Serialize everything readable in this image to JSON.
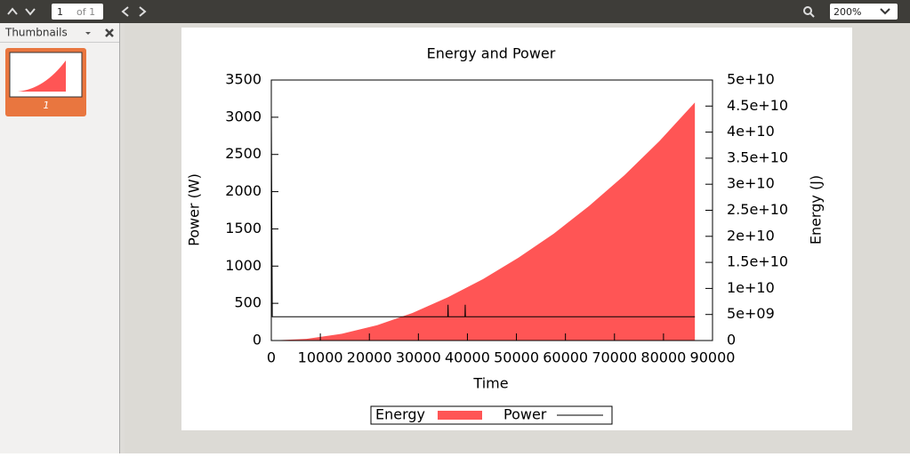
{
  "toolbar": {
    "page": "1",
    "page_count": "of 1",
    "zoom": "200%"
  },
  "sidebar": {
    "title": "Thumbnails",
    "thumbnail_label": "1"
  },
  "chart_data": {
    "type": "area",
    "title": "Energy and Power",
    "x_label": "Time",
    "y_label": "Power (W)",
    "y2_label": "Energy (J)",
    "xlim": [
      0,
      90000
    ],
    "xticks": [
      0,
      10000,
      20000,
      30000,
      40000,
      50000,
      60000,
      70000,
      80000,
      90000
    ],
    "ylim": [
      0,
      3500
    ],
    "yticks": [
      0,
      500,
      1000,
      1500,
      2000,
      2500,
      3000,
      3500
    ],
    "y2lim": [
      0,
      50000000000
    ],
    "y2ticks": [
      0,
      {
        "value": 5000000000,
        "label": "5e+09"
      },
      {
        "value": 10000000000,
        "label": "1e+10"
      },
      {
        "value": 15000000000,
        "label": "1.5e+10"
      },
      {
        "value": 20000000000,
        "label": "2e+10"
      },
      {
        "value": 25000000000,
        "label": "2.5e+10"
      },
      {
        "value": 30000000000,
        "label": "3e+10"
      },
      {
        "value": 35000000000,
        "label": "3.5e+10"
      },
      {
        "value": 40000000000,
        "label": "4e+10"
      },
      {
        "value": 45000000000,
        "label": "4.5e+10"
      },
      {
        "value": 50000000000,
        "label": "5e+10"
      }
    ],
    "series": [
      {
        "name": "Energy",
        "type": "area",
        "axis": "y2",
        "color": "#ff5555",
        "x": [
          0,
          7200,
          14400,
          21600,
          28800,
          36000,
          43200,
          50400,
          57600,
          64800,
          72000,
          79200,
          86400
        ],
        "values": [
          0,
          320000000,
          1300000000,
          2950000000,
          5300000000,
          8300000000,
          11800000000,
          15900000000,
          20500000000,
          25800000000,
          31700000000,
          38300000000,
          45700000000
        ]
      },
      {
        "name": "Power",
        "type": "line",
        "color": "#000000",
        "x": [
          0,
          200,
          36000,
          36050,
          36100,
          39500,
          39550,
          39600,
          86400
        ],
        "values": [
          3080,
          320,
          320,
          480,
          320,
          320,
          480,
          320,
          320
        ]
      }
    ]
  }
}
